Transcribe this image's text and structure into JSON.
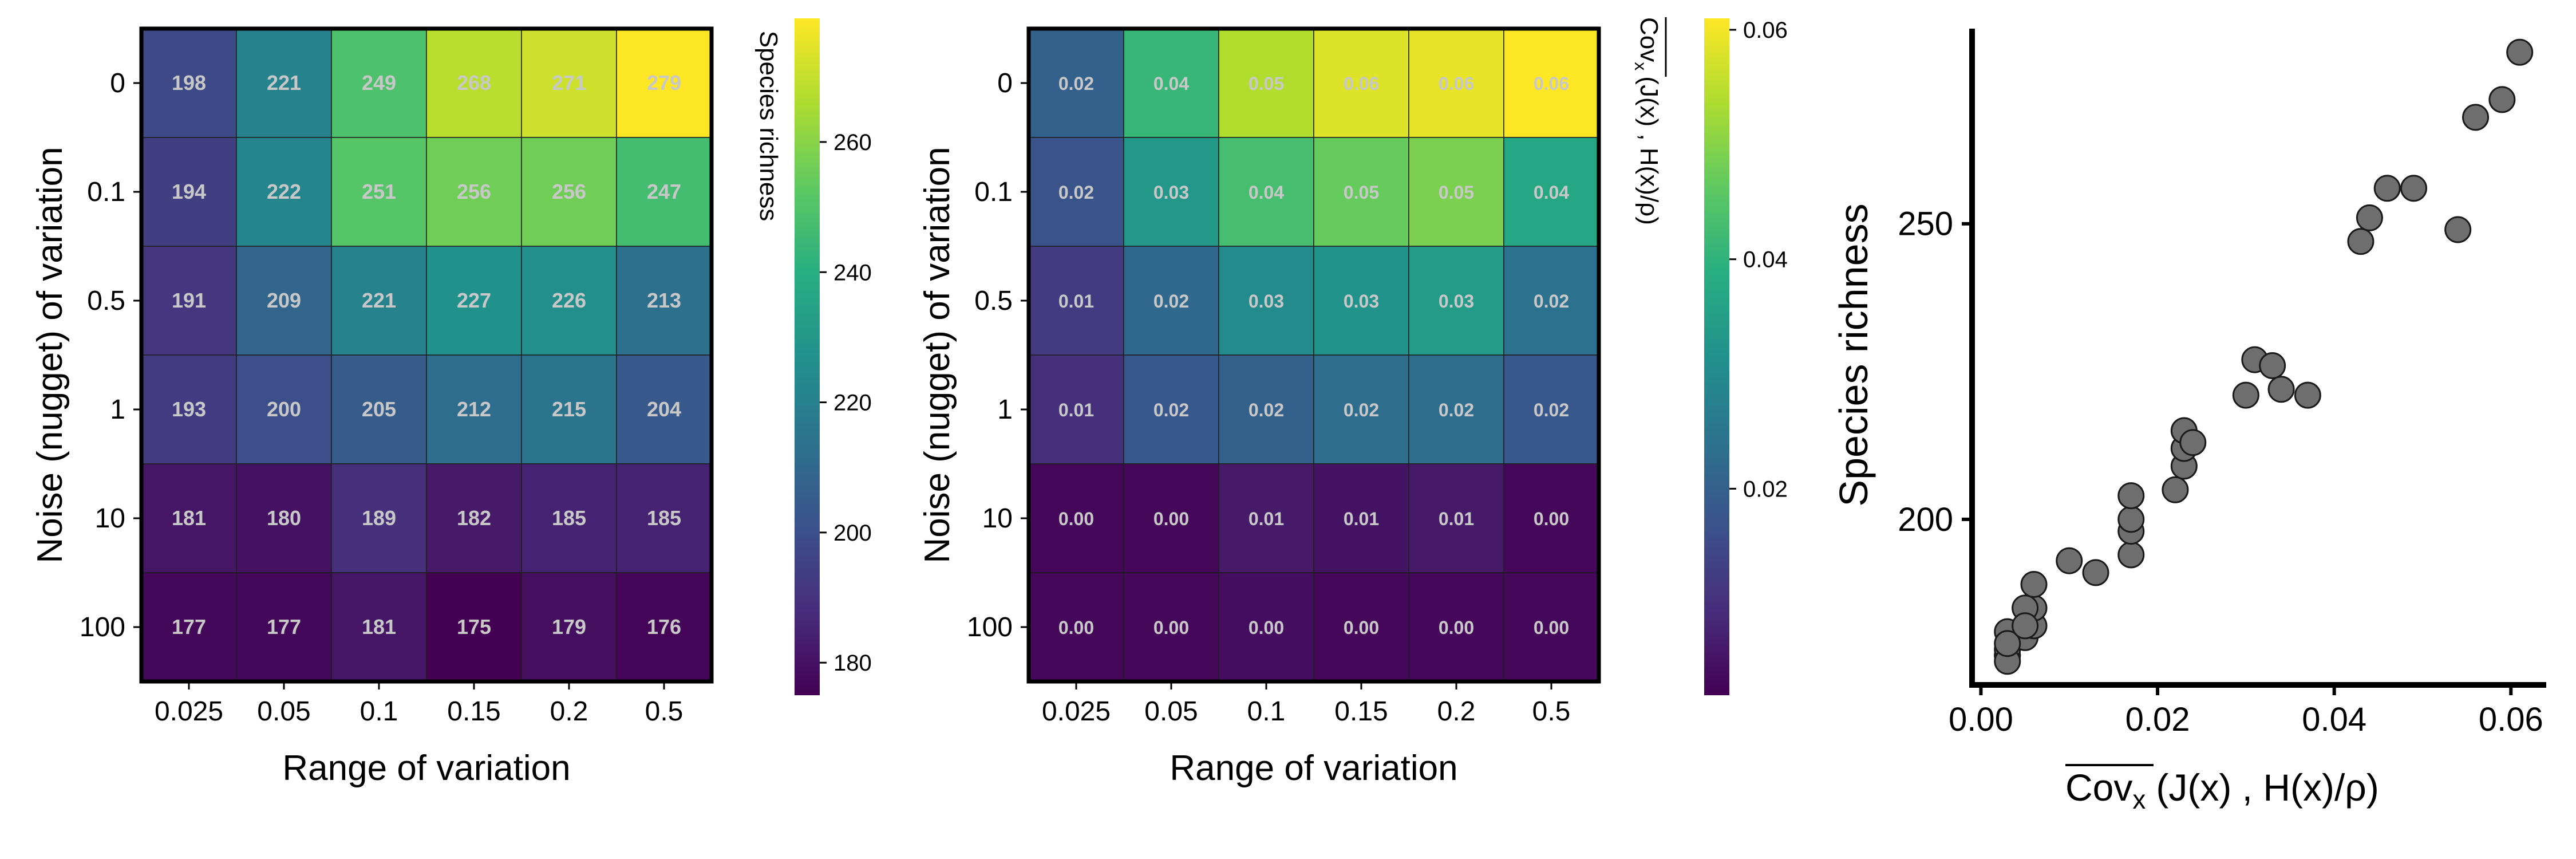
{
  "chart_data": [
    {
      "type": "heatmap",
      "categories_x": [
        "0.025",
        "0.05",
        "0.1",
        "0.15",
        "0.2",
        "0.5"
      ],
      "categories_y": [
        "0",
        "0.1",
        "0.5",
        "1",
        "10",
        "100"
      ],
      "values": [
        [
          198,
          221,
          249,
          268,
          271,
          279
        ],
        [
          194,
          222,
          251,
          256,
          256,
          247
        ],
        [
          191,
          209,
          221,
          227,
          226,
          213
        ],
        [
          193,
          200,
          205,
          212,
          215,
          204
        ],
        [
          181,
          180,
          189,
          182,
          185,
          185
        ],
        [
          177,
          177,
          181,
          175,
          179,
          176
        ]
      ],
      "xlabel": "Range of variation",
      "ylabel": "Noise (nugget) of variation",
      "colorbar": {
        "label": "Species richness",
        "range": [
          175,
          279
        ],
        "ticks": [
          "180",
          "200",
          "220",
          "240",
          "260"
        ],
        "colormap": "viridis"
      },
      "grid": false
    },
    {
      "type": "heatmap",
      "categories_x": [
        "0.025",
        "0.05",
        "0.1",
        "0.15",
        "0.2",
        "0.5"
      ],
      "categories_y": [
        "0",
        "0.1",
        "0.5",
        "1",
        "10",
        "100"
      ],
      "values": [
        [
          0.02,
          0.04,
          0.05,
          0.06,
          0.06,
          0.06
        ],
        [
          0.02,
          0.03,
          0.04,
          0.05,
          0.05,
          0.04
        ],
        [
          0.01,
          0.02,
          0.03,
          0.03,
          0.03,
          0.02
        ],
        [
          0.01,
          0.02,
          0.02,
          0.02,
          0.02,
          0.02
        ],
        [
          0.0,
          0.0,
          0.01,
          0.01,
          0.01,
          0.0
        ],
        [
          0.0,
          0.0,
          0.0,
          0.0,
          0.0,
          0.0
        ]
      ],
      "cell_labels": [
        [
          "0.02",
          "0.04",
          "0.05",
          "0.06",
          "0.06",
          "0.06"
        ],
        [
          "0.02",
          "0.03",
          "0.04",
          "0.05",
          "0.05",
          "0.04"
        ],
        [
          "0.01",
          "0.02",
          "0.03",
          "0.03",
          "0.03",
          "0.02"
        ],
        [
          "0.01",
          "0.02",
          "0.02",
          "0.02",
          "0.02",
          "0.02"
        ],
        [
          "0.00",
          "0.00",
          "0.01",
          "0.01",
          "0.01",
          "0.00"
        ],
        [
          "0.00",
          "0.00",
          "0.00",
          "0.00",
          "0.00",
          "0.00"
        ]
      ],
      "value_matrix": [
        [
          0.02,
          0.041,
          0.054,
          0.058,
          0.059,
          0.061
        ],
        [
          0.017,
          0.033,
          0.043,
          0.047,
          0.049,
          0.037
        ],
        [
          0.012,
          0.022,
          0.03,
          0.032,
          0.034,
          0.024
        ],
        [
          0.01,
          0.018,
          0.02,
          0.023,
          0.023,
          0.018
        ],
        [
          0.003,
          0.003,
          0.006,
          0.005,
          0.006,
          0.003
        ],
        [
          0.003,
          0.003,
          0.004,
          0.003,
          0.003,
          0.003
        ]
      ],
      "xlabel": "Range of variation",
      "ylabel": "Noise (nugget) of variation",
      "colorbar": {
        "label": "Cov_x (J(x) , H(x)/ρ)",
        "range": [
          0.002,
          0.061
        ],
        "ticks": [
          "0.02",
          "0.04",
          "0.06"
        ],
        "colormap": "viridis"
      },
      "grid": false
    },
    {
      "type": "scatter",
      "x": [
        0.003,
        0.003,
        0.003,
        0.005,
        0.006,
        0.006,
        0.003,
        0.003,
        0.005,
        0.003,
        0.005,
        0.006,
        0.01,
        0.013,
        0.017,
        0.017,
        0.017,
        0.017,
        0.022,
        0.023,
        0.023,
        0.023,
        0.024,
        0.03,
        0.031,
        0.033,
        0.034,
        0.037,
        0.043,
        0.044,
        0.046,
        0.049,
        0.054,
        0.056,
        0.059,
        0.061
      ],
      "y": [
        177,
        177,
        178,
        180,
        182,
        185,
        181,
        176,
        185,
        179,
        182,
        189,
        193,
        191,
        194,
        198,
        200,
        204,
        205,
        209,
        212,
        215,
        213,
        221,
        227,
        226,
        222,
        221,
        247,
        251,
        256,
        256,
        249,
        268,
        271,
        279
      ],
      "xlabel": "Cov_x (J(x) , H(x)/ρ)",
      "ylabel": "Species richness",
      "xticks": [
        "0.00",
        "0.02",
        "0.04",
        "0.06"
      ],
      "yticks": [
        "200",
        "250"
      ],
      "xlim": [
        -0.001,
        0.064
      ],
      "ylim": [
        172,
        283
      ],
      "grid": false
    }
  ],
  "text": {
    "cbar1_label": "Species richness",
    "cbar2_label_a": "Cov",
    "cbar2_label_sub": "x",
    "cbar2_label_b": "(J(x) ,  H(x)/ρ)",
    "scatter_xlabel_a": "Cov",
    "scatter_xlabel_sub": "x",
    "scatter_xlabel_b": "(J(x) ,  H(x)/ρ)"
  },
  "colors": {
    "cell_text": "#c8c8c8",
    "marker_fill": "#6e6e6e",
    "marker_edge": "#1a1a1a",
    "colormap": "viridis"
  }
}
